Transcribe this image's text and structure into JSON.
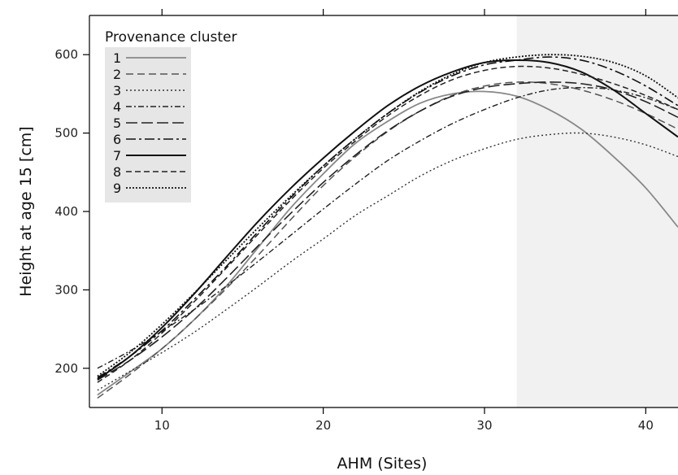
{
  "chart_data": {
    "type": "line",
    "title": "",
    "xlabel": "AHM (Sites)",
    "ylabel": "Height at age 15 [cm]",
    "xlim": [
      5.5,
      42
    ],
    "ylim": [
      150,
      650
    ],
    "x_ticks": [
      10,
      20,
      30,
      40
    ],
    "y_ticks": [
      200,
      300,
      400,
      500,
      600
    ],
    "shaded_region": {
      "x_from": 32,
      "x_to": 42,
      "color": "#f1f1f1"
    },
    "grid": false,
    "legend": {
      "title": "Provenance cluster",
      "position": "top-left"
    },
    "x": [
      6,
      8,
      10,
      12,
      14,
      16,
      18,
      20,
      22,
      24,
      26,
      28,
      30,
      32,
      34,
      36,
      38,
      40,
      42
    ],
    "series": [
      {
        "name": "1",
        "color": "#888888",
        "dash": "",
        "width": 1.8,
        "values": [
          166,
          195,
          225,
          262,
          305,
          355,
          405,
          448,
          487,
          515,
          538,
          550,
          553,
          547,
          530,
          505,
          470,
          430,
          380
        ]
      },
      {
        "name": "2",
        "color": "#555555",
        "dash": "9,5",
        "width": 1.5,
        "values": [
          162,
          192,
          225,
          262,
          302,
          345,
          390,
          433,
          470,
          502,
          528,
          548,
          560,
          565,
          563,
          555,
          542,
          525,
          505
        ]
      },
      {
        "name": "3",
        "color": "#333333",
        "dash": "2,3",
        "width": 1.4,
        "values": [
          172,
          196,
          220,
          246,
          275,
          305,
          336,
          365,
          395,
          420,
          445,
          465,
          480,
          492,
          498,
          500,
          495,
          485,
          470
        ]
      },
      {
        "name": "4",
        "color": "#222222",
        "dash": "7,3,2,3",
        "width": 1.4,
        "values": [
          200,
          222,
          247,
          275,
          305,
          337,
          370,
          403,
          435,
          465,
          490,
          512,
          530,
          545,
          555,
          558,
          555,
          545,
          530
        ]
      },
      {
        "name": "5",
        "color": "#222222",
        "dash": "14,5",
        "width": 1.6,
        "values": [
          185,
          210,
          240,
          275,
          315,
          357,
          398,
          437,
          472,
          503,
          528,
          547,
          558,
          563,
          565,
          563,
          555,
          540,
          520
        ]
      },
      {
        "name": "6",
        "color": "#111111",
        "dash": "12,4,3,4",
        "width": 1.6,
        "values": [
          188,
          215,
          248,
          288,
          330,
          375,
          418,
          458,
          493,
          525,
          552,
          573,
          587,
          593,
          597,
          593,
          580,
          560,
          535
        ]
      },
      {
        "name": "7",
        "color": "#111111",
        "dash": "",
        "width": 2.0,
        "values": [
          186,
          215,
          252,
          295,
          342,
          388,
          430,
          468,
          503,
          535,
          560,
          578,
          590,
          593,
          590,
          578,
          555,
          525,
          495
        ]
      },
      {
        "name": "8",
        "color": "#222222",
        "dash": "7,4",
        "width": 1.5,
        "values": [
          182,
          210,
          245,
          285,
          328,
          372,
          415,
          455,
          490,
          522,
          548,
          568,
          580,
          585,
          583,
          575,
          563,
          548,
          530
        ]
      },
      {
        "name": "9",
        "color": "#111111",
        "dash": "2,2",
        "width": 1.8,
        "values": [
          190,
          220,
          256,
          296,
          338,
          380,
          420,
          458,
          493,
          525,
          553,
          575,
          590,
          597,
          600,
          598,
          590,
          573,
          545
        ]
      }
    ]
  }
}
